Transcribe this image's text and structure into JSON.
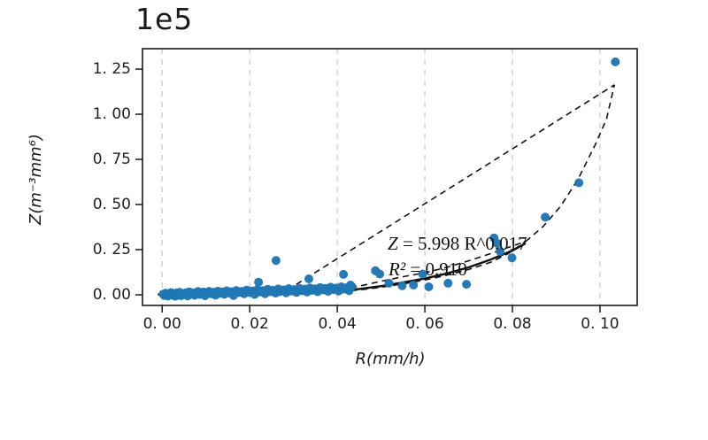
{
  "figure": {
    "offset_label": "1e5",
    "x_axis_label": "R(mm/h)",
    "y_axis_label": "Z(m⁻³mm⁶)",
    "annotation": {
      "var1": "Z",
      "rest1": " = 5.998 R^0.017",
      "var2": "R²",
      "rest2": " = 0.910"
    },
    "colors": {
      "point": "#1f77b4",
      "grid": "#cccccc",
      "curve": "#111111",
      "spine": "#1a1a1a",
      "text": "#1f1f1f"
    }
  },
  "chart_data": {
    "type": "scatter",
    "title": "",
    "xlabel": "R(mm/h)",
    "ylabel": "Z(m⁻³mm⁶)",
    "y_offset_multiplier": "1e5",
    "xlim": [
      -0.0045,
      0.1085
    ],
    "ylim": [
      -0.059,
      1.363
    ],
    "grid": "vertical-dashed",
    "legend": "none",
    "x_ticks": [
      {
        "v": 0.0,
        "label": "0. 00"
      },
      {
        "v": 0.02,
        "label": "0. 02"
      },
      {
        "v": 0.04,
        "label": "0. 04"
      },
      {
        "v": 0.06,
        "label": "0. 06"
      },
      {
        "v": 0.08,
        "label": "0. 08"
      },
      {
        "v": 0.1,
        "label": "0. 10"
      }
    ],
    "y_ticks": [
      {
        "v": 0.0,
        "label": "0. 00"
      },
      {
        "v": 0.25,
        "label": "0. 25"
      },
      {
        "v": 0.5,
        "label": "0. 50"
      },
      {
        "v": 0.75,
        "label": "0. 75"
      },
      {
        "v": 1.0,
        "label": "1. 00"
      },
      {
        "v": 1.25,
        "label": "1. 25"
      }
    ],
    "fit_annotation": [
      "Z = 5.998 R^0.017",
      "R² = 0.910"
    ],
    "points": [
      [
        0.0002,
        0.004
      ],
      [
        0.0005,
        -0.004
      ],
      [
        0.0008,
        0.009
      ],
      [
        0.001,
        0.002
      ],
      [
        0.0013,
        -0.007
      ],
      [
        0.0016,
        0.006
      ],
      [
        0.002,
        0.012
      ],
      [
        0.0023,
        -0.002
      ],
      [
        0.0026,
        0.005
      ],
      [
        0.003,
        -0.008
      ],
      [
        0.0033,
        0.01
      ],
      [
        0.0036,
        0.003
      ],
      [
        0.004,
        0.014
      ],
      [
        0.0043,
        -0.005
      ],
      [
        0.0046,
        0.007
      ],
      [
        0.005,
        0.001
      ],
      [
        0.0054,
        0.011
      ],
      [
        0.0058,
        -0.006
      ],
      [
        0.0062,
        0.016
      ],
      [
        0.0066,
        0.004
      ],
      [
        0.007,
        0.009
      ],
      [
        0.0074,
        -0.003
      ],
      [
        0.0078,
        0.013
      ],
      [
        0.0082,
        0.018
      ],
      [
        0.0086,
        0.002
      ],
      [
        0.009,
        0.007
      ],
      [
        0.0094,
        0.015
      ],
      [
        0.0098,
        -0.005
      ],
      [
        0.0102,
        0.011
      ],
      [
        0.0107,
        0.019
      ],
      [
        0.0112,
        0.005
      ],
      [
        0.0117,
        0.014
      ],
      [
        0.0122,
        -0.002
      ],
      [
        0.0127,
        0.02
      ],
      [
        0.0132,
        0.008
      ],
      [
        0.0137,
        0.016
      ],
      [
        0.0142,
        0.003
      ],
      [
        0.0147,
        0.022
      ],
      [
        0.0152,
        0.01
      ],
      [
        0.0157,
        0.017
      ],
      [
        0.0163,
        -0.004
      ],
      [
        0.0169,
        0.024
      ],
      [
        0.0175,
        0.012
      ],
      [
        0.0181,
        0.019
      ],
      [
        0.0187,
        0.005
      ],
      [
        0.0193,
        0.026
      ],
      [
        0.0199,
        0.013
      ],
      [
        0.0205,
        0.021
      ],
      [
        0.0211,
        0.002
      ],
      [
        0.0217,
        0.028
      ],
      [
        0.0223,
        0.015
      ],
      [
        0.0229,
        0.023
      ],
      [
        0.0235,
        0.006
      ],
      [
        0.0241,
        0.03
      ],
      [
        0.0247,
        0.017
      ],
      [
        0.0253,
        0.025
      ],
      [
        0.0259,
        0.009
      ],
      [
        0.0265,
        0.032
      ],
      [
        0.0271,
        0.019
      ],
      [
        0.0277,
        0.027
      ],
      [
        0.0283,
        0.011
      ],
      [
        0.0289,
        0.034
      ],
      [
        0.0295,
        0.021
      ],
      [
        0.0301,
        0.029
      ],
      [
        0.0307,
        0.013
      ],
      [
        0.0313,
        0.036
      ],
      [
        0.0319,
        0.023
      ],
      [
        0.0325,
        0.031
      ],
      [
        0.0331,
        0.015
      ],
      [
        0.0337,
        0.038
      ],
      [
        0.0343,
        0.025
      ],
      [
        0.0349,
        0.033
      ],
      [
        0.0355,
        0.017
      ],
      [
        0.0361,
        0.04
      ],
      [
        0.0367,
        0.027
      ],
      [
        0.0373,
        0.035
      ],
      [
        0.0379,
        0.019
      ],
      [
        0.0385,
        0.042
      ],
      [
        0.0391,
        0.029
      ],
      [
        0.0397,
        0.037
      ],
      [
        0.0403,
        0.021
      ],
      [
        0.0409,
        0.044
      ],
      [
        0.0415,
        0.031
      ],
      [
        0.0421,
        0.039
      ],
      [
        0.0427,
        0.023
      ],
      [
        0.0433,
        0.046
      ],
      [
        0.022,
        0.07
      ],
      [
        0.026,
        0.19
      ],
      [
        0.0335,
        0.088
      ],
      [
        0.0414,
        0.113
      ],
      [
        0.043,
        0.054
      ],
      [
        0.0487,
        0.133
      ],
      [
        0.0497,
        0.115
      ],
      [
        0.0518,
        0.064
      ],
      [
        0.0548,
        0.05
      ],
      [
        0.0574,
        0.054
      ],
      [
        0.0595,
        0.115
      ],
      [
        0.0609,
        0.044
      ],
      [
        0.0653,
        0.064
      ],
      [
        0.0695,
        0.058
      ],
      [
        0.0758,
        0.315
      ],
      [
        0.0765,
        0.285
      ],
      [
        0.0772,
        0.24
      ],
      [
        0.0799,
        0.205
      ],
      [
        0.0875,
        0.43
      ],
      [
        0.0952,
        0.62
      ],
      [
        0.1035,
        1.29
      ]
    ],
    "curves": [
      {
        "name": "fit-curve-solid",
        "style": "solid",
        "pts": [
          [
            -0.001,
            0.002
          ],
          [
            0.01,
            0.003
          ],
          [
            0.02,
            0.005
          ],
          [
            0.03,
            0.009
          ],
          [
            0.035,
            0.013
          ],
          [
            0.04,
            0.02
          ],
          [
            0.045,
            0.032
          ],
          [
            0.05,
            0.048
          ],
          [
            0.055,
            0.068
          ],
          [
            0.06,
            0.09
          ],
          [
            0.065,
            0.118
          ],
          [
            0.07,
            0.152
          ],
          [
            0.075,
            0.195
          ],
          [
            0.08,
            0.245
          ],
          [
            0.083,
            0.285
          ]
        ]
      },
      {
        "name": "confidence-band-upper",
        "style": "dashed",
        "pts": [
          [
            0.031,
            0.012
          ],
          [
            0.04,
            0.028
          ],
          [
            0.045,
            0.048
          ],
          [
            0.05,
            0.075
          ],
          [
            0.055,
            0.1
          ],
          [
            0.06,
            0.122
          ],
          [
            0.065,
            0.152
          ],
          [
            0.07,
            0.188
          ],
          [
            0.075,
            0.228
          ],
          [
            0.079,
            0.262
          ],
          [
            0.083,
            0.295
          ]
        ]
      },
      {
        "name": "confidence-band-lower",
        "style": "dashed",
        "pts": [
          [
            0.031,
            0.006
          ],
          [
            0.04,
            0.017
          ],
          [
            0.045,
            0.027
          ],
          [
            0.05,
            0.042
          ],
          [
            0.055,
            0.06
          ],
          [
            0.06,
            0.082
          ],
          [
            0.065,
            0.108
          ],
          [
            0.07,
            0.14
          ],
          [
            0.075,
            0.18
          ],
          [
            0.079,
            0.228
          ],
          [
            0.083,
            0.295
          ]
        ]
      },
      {
        "name": "fit-curve-extension",
        "style": "dashed",
        "pts": [
          [
            0.083,
            0.295
          ],
          [
            0.087,
            0.378
          ],
          [
            0.091,
            0.49
          ],
          [
            0.095,
            0.64
          ],
          [
            0.099,
            0.835
          ],
          [
            0.1015,
            0.975
          ],
          [
            0.1033,
            1.163
          ]
        ]
      },
      {
        "name": "upper-envelope-line",
        "style": "dashed",
        "pts": [
          [
            0.0265,
            -0.005
          ],
          [
            0.1033,
            1.163
          ]
        ]
      }
    ]
  }
}
